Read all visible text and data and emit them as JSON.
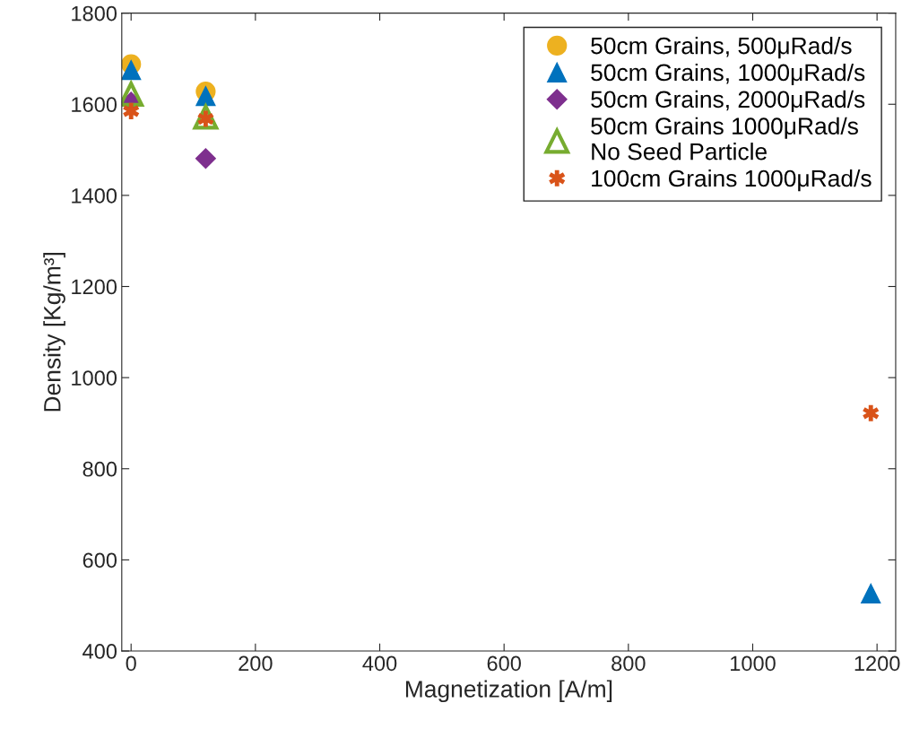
{
  "chart_data": {
    "type": "scatter",
    "xlabel": "Magnetization [A/m]",
    "ylabel": "Density [Kg/m³]",
    "xlim": [
      -15,
      1230
    ],
    "ylim": [
      400,
      1800
    ],
    "xticks": [
      0,
      200,
      400,
      600,
      800,
      1000,
      1200
    ],
    "yticks": [
      400,
      600,
      800,
      1000,
      1200,
      1400,
      1600,
      1800
    ],
    "grid": false,
    "legend": "top right",
    "series": [
      {
        "name": "50cm Grains, 500μRad/s",
        "color": "#edb120",
        "marker": "circle",
        "x": [
          0,
          120
        ],
        "values": [
          1688,
          1628
        ]
      },
      {
        "name": "50cm Grains, 1000μRad/s",
        "color": "#0072bd",
        "marker": "triangle",
        "x": [
          0,
          120,
          1190
        ],
        "values": [
          1675,
          1618,
          526
        ]
      },
      {
        "name": "50cm Grains, 2000μRad/s",
        "color": "#7e2f8e",
        "marker": "diamond",
        "x": [
          0,
          120
        ],
        "values": [
          1605,
          1481
        ]
      },
      {
        "name": "50cm Grains 1000μRad/s\nNo Seed Particle",
        "color": "#77ac30",
        "marker": "triangle",
        "x": [
          0,
          120
        ],
        "values": [
          1622,
          1572
        ]
      },
      {
        "name": "100cm Grains 1000μRad/s",
        "color": "#d95319",
        "marker": "cross",
        "x": [
          0,
          120,
          1190
        ],
        "values": [
          1585,
          1568,
          922
        ]
      }
    ]
  }
}
